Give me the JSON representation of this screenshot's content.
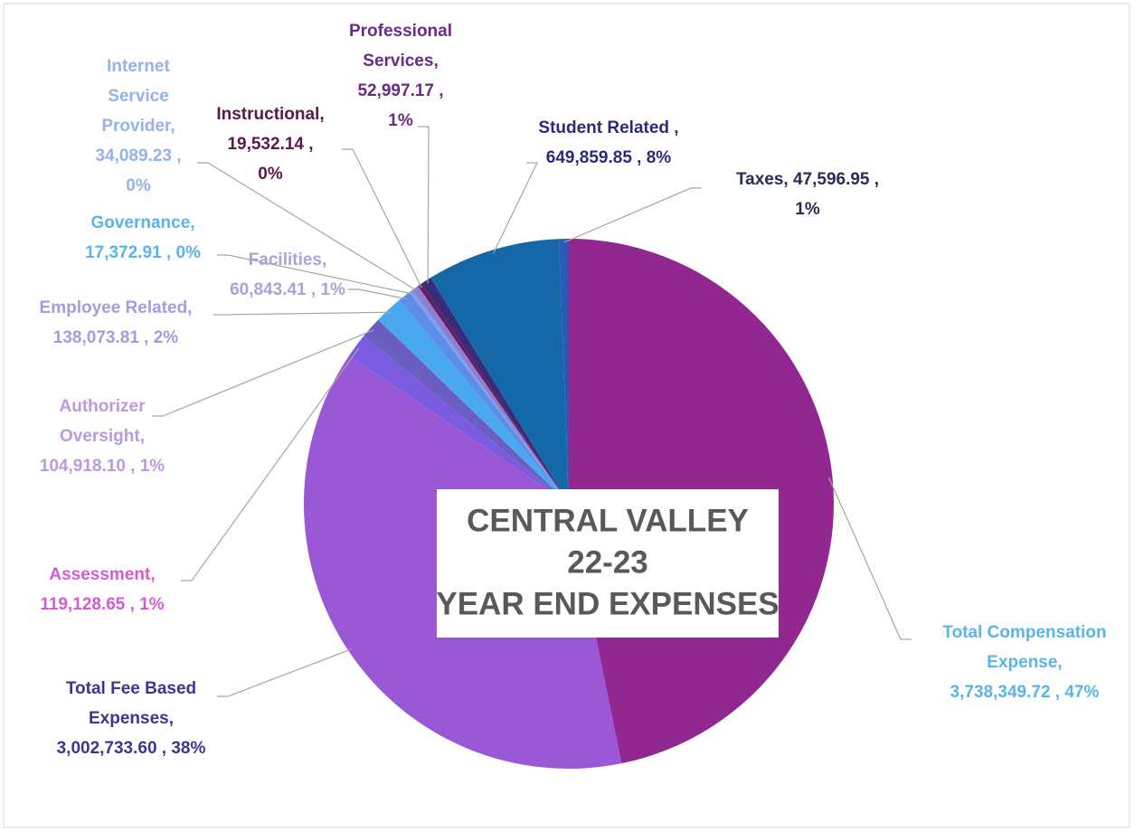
{
  "chart_data": {
    "type": "pie",
    "title": [
      "CENTRAL VALLEY",
      "22-23",
      "YEAR END EXPENSES"
    ],
    "categories": [
      "Total Compensation Expense",
      "Total Fee Based Expenses",
      "Assessment",
      "Authorizer Oversight",
      "Employee Related",
      "Facilities",
      "Governance",
      "Internet Service Provider",
      "Instructional",
      "Professional Services",
      "Student Related",
      "Taxes"
    ],
    "values": [
      3738349.72,
      3002733.6,
      119128.65,
      104918.1,
      138073.81,
      60843.41,
      17372.91,
      34089.23,
      19532.14,
      52997.17,
      649859.85,
      47596.95
    ],
    "value_labels": [
      [
        "Total Compensation",
        "Expense,",
        "3,738,349.72 , 47%"
      ],
      [
        "Total Fee Based",
        "Expenses,",
        "3,002,733.60 , 38%"
      ],
      [
        "Assessment,",
        "119,128.65 , 1%"
      ],
      [
        "Authorizer",
        "Oversight,",
        "104,918.10 , 1%"
      ],
      [
        "Employee Related,",
        "138,073.81 , 2%"
      ],
      [
        "Facilities,",
        "60,843.41 , 1%"
      ],
      [
        "Governance,",
        "17,372.91 , 0%"
      ],
      [
        "Internet",
        "Service",
        "Provider,",
        "34,089.23 ,",
        "0%"
      ],
      [
        "Instructional,",
        "19,532.14 ,",
        "0%"
      ],
      [
        "Professional",
        "Services,",
        "52,997.17 ,",
        "1%"
      ],
      [
        "Student Related ,",
        "649,859.85 , 8%"
      ],
      [
        "Taxes,  47,596.95 ,",
        "1%"
      ]
    ],
    "colors": [
      "#912891",
      "#9A57D6",
      "#7B5BE0",
      "#6A5FC0",
      "#4AA8F0",
      "#5C8DE8",
      "#7FA0E8",
      "#8C7FD8",
      "#6A1A5A",
      "#3A2A7A",
      "#1568A8",
      "#2A5AB5"
    ],
    "label_colors": [
      "#5BB4E8",
      "#3D3592",
      "#D45BD4",
      "#B89BE0",
      "#A99AE0",
      "#A7A3D9",
      "#5BB4E8",
      "#94B3E8",
      "#5A1A4A",
      "#6A2A8A",
      "#2B2B7A",
      "#2B2B5A"
    ]
  }
}
